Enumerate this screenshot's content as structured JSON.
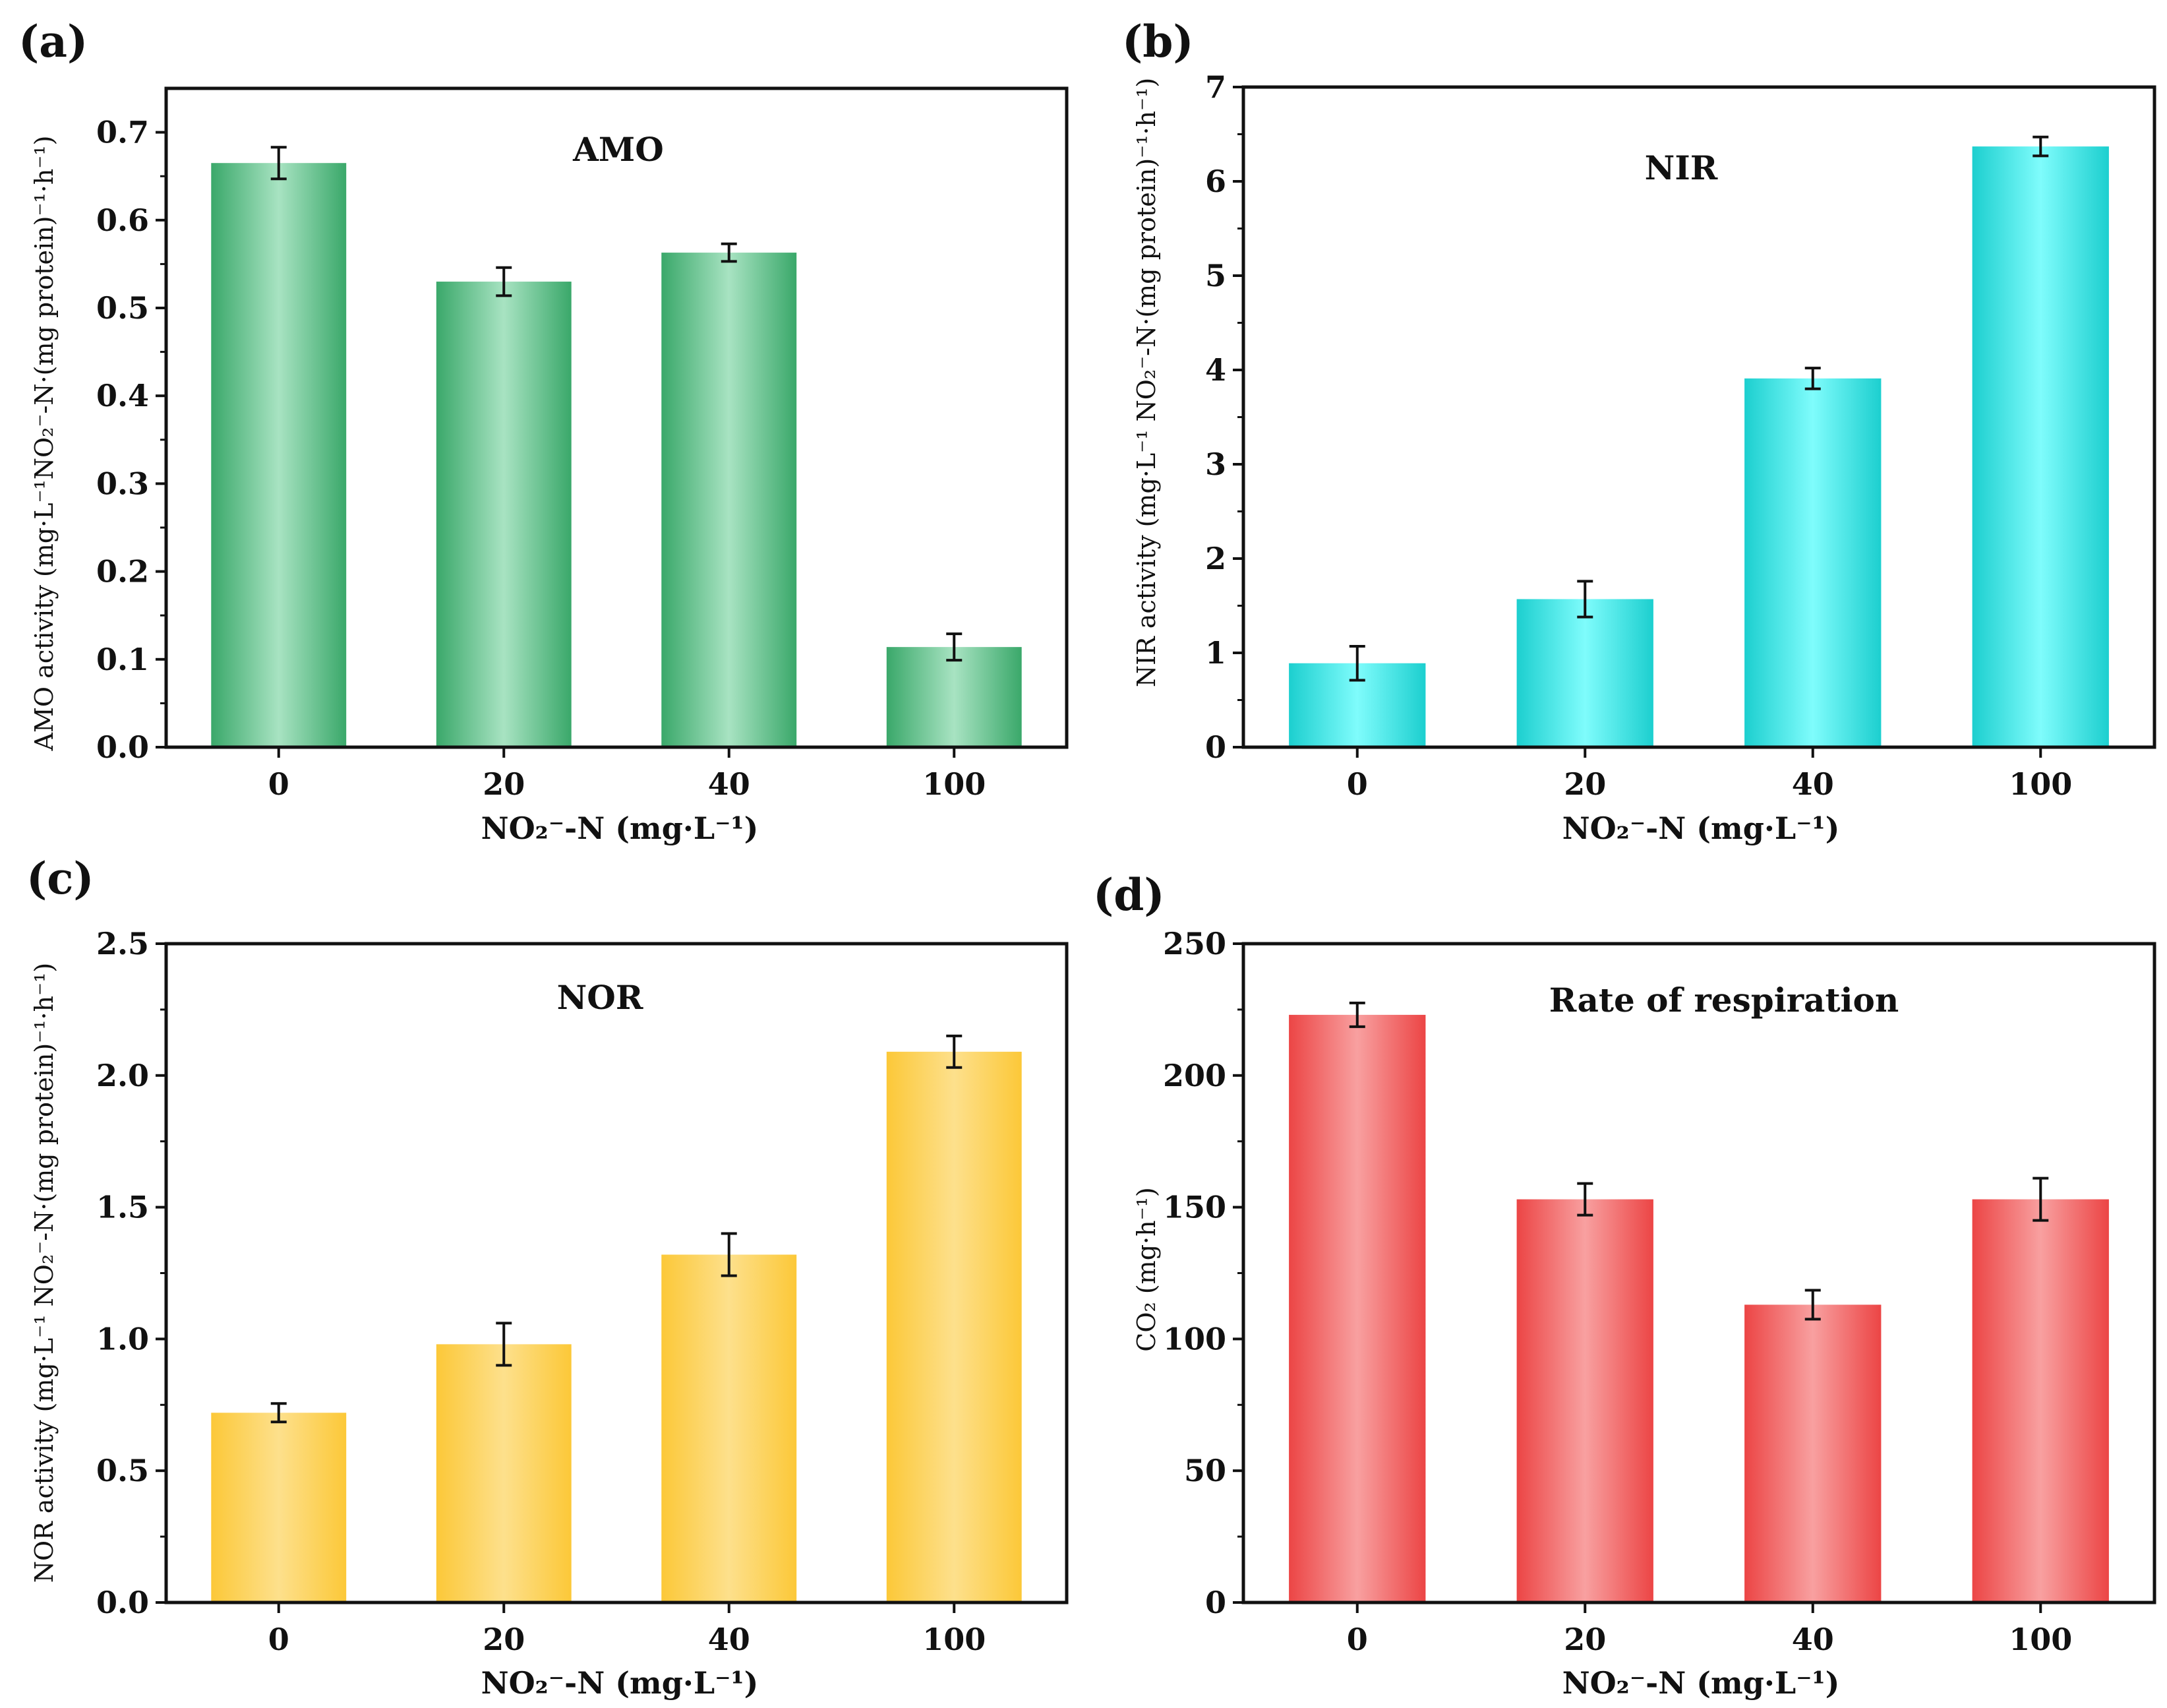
{
  "figure": {
    "panels": [
      {
        "letter": "(a)",
        "inner_title": "AMO",
        "xlabel": "NO₂⁻-N (mg·L⁻¹)",
        "ylabel": "AMO activity (mg·L⁻¹NO₂⁻-N·(mg protein)⁻¹·h⁻¹)"
      },
      {
        "letter": "(b)",
        "inner_title": "NIR",
        "xlabel": "NO₂⁻-N (mg·L⁻¹)",
        "ylabel": "NIR activity (mg·L⁻¹ NO₂⁻-N·(mg protein)⁻¹·h⁻¹)"
      },
      {
        "letter": "(c)",
        "inner_title": "NOR",
        "xlabel": "NO₂⁻-N (mg·L⁻¹)",
        "ylabel": "NOR activity (mg·L⁻¹ NO₂⁻-N·(mg protein)⁻¹·h⁻¹)"
      },
      {
        "letter": "(d)",
        "inner_title": "Rate of respiration",
        "xlabel": "NO₂⁻-N (mg·L⁻¹)",
        "ylabel": "CO₂ (mg·h⁻¹)"
      }
    ]
  },
  "chart_data": [
    {
      "type": "bar",
      "title": "AMO",
      "categories": [
        "0",
        "20",
        "40",
        "100"
      ],
      "values": [
        0.665,
        0.53,
        0.563,
        0.114
      ],
      "errors": [
        0.018,
        0.016,
        0.01,
        0.015
      ],
      "ylim": [
        0,
        0.75
      ],
      "yticks": [
        0.0,
        0.1,
        0.2,
        0.3,
        0.4,
        0.5,
        0.6,
        0.7
      ],
      "ytick_labels": [
        "0.0",
        "0.1",
        "0.2",
        "0.3",
        "0.4",
        "0.5",
        "0.6",
        "0.7"
      ],
      "xlabel": "NO₂⁻-N (mg·L⁻¹)",
      "ylabel": "AMO activity (mg·L⁻¹NO₂⁻-N·(mg protein)⁻¹·h⁻¹)",
      "colors": {
        "edge": "#3aa86a",
        "center": "#a8e3c2"
      }
    },
    {
      "type": "bar",
      "title": "NIR",
      "categories": [
        "0",
        "20",
        "40",
        "100"
      ],
      "values": [
        0.89,
        1.57,
        3.91,
        6.37
      ],
      "errors": [
        0.18,
        0.19,
        0.11,
        0.1
      ],
      "ylim": [
        0,
        7
      ],
      "yticks": [
        0,
        1,
        2,
        3,
        4,
        5,
        6,
        7
      ],
      "ytick_labels": [
        "0",
        "1",
        "2",
        "3",
        "4",
        "5",
        "6",
        "7"
      ],
      "xlabel": "NO₂⁻-N (mg·L⁻¹)",
      "ylabel": "NIR activity (mg·L⁻¹ NO₂⁻-N·(mg protein)⁻¹·h⁻¹)",
      "colors": {
        "edge": "#1ccfcf",
        "center": "#7ffcfc"
      }
    },
    {
      "type": "bar",
      "title": "NOR",
      "categories": [
        "0",
        "20",
        "40",
        "100"
      ],
      "values": [
        0.72,
        0.98,
        1.32,
        2.09
      ],
      "errors": [
        0.035,
        0.08,
        0.08,
        0.06
      ],
      "ylim": [
        0,
        2.5
      ],
      "yticks": [
        0.0,
        0.5,
        1.0,
        1.5,
        2.0,
        2.5
      ],
      "ytick_labels": [
        "0.0",
        "0.5",
        "1.0",
        "1.5",
        "2.0",
        "2.5"
      ],
      "xlabel": "NO₂⁻-N (mg·L⁻¹)",
      "ylabel": "NOR activity (mg·L⁻¹ NO₂⁻-N·(mg protein)⁻¹·h⁻¹)",
      "colors": {
        "edge": "#fcc838",
        "center": "#fde08c"
      }
    },
    {
      "type": "bar",
      "title": "Rate of respiration",
      "categories": [
        "0",
        "20",
        "40",
        "100"
      ],
      "values": [
        223,
        153,
        113,
        153
      ],
      "errors": [
        4.5,
        6,
        5.5,
        8
      ],
      "ylim": [
        0,
        250
      ],
      "yticks": [
        0,
        50,
        100,
        150,
        200,
        250
      ],
      "ytick_labels": [
        "0",
        "50",
        "100",
        "150",
        "200",
        "250"
      ],
      "xlabel": "NO₂⁻-N (mg·L⁻¹)",
      "ylabel": "CO₂ (mg·h⁻¹)",
      "colors": {
        "edge": "#ec4545",
        "center": "#f8a0a0"
      }
    }
  ]
}
